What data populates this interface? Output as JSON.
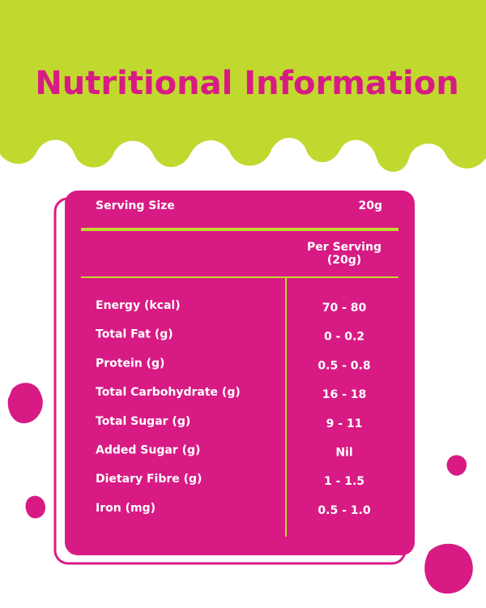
{
  "header": {
    "title": "Nutritional Information"
  },
  "table": {
    "serving_label": "Serving Size",
    "serving_value": "20g",
    "column_header": [
      "Per Serving",
      "(20g)"
    ],
    "rows": [
      [
        "Energy (kcal)",
        "70 - 80"
      ],
      [
        "Total Fat (g)",
        "0 - 0.2"
      ],
      [
        "Protein (g)",
        "0.5 - 0.8"
      ],
      [
        "Total Carbohydrate (g)",
        "16 - 18"
      ],
      [
        "Total Sugar (g)",
        "9 - 11"
      ],
      [
        "Added Sugar (g)",
        "Nil"
      ],
      [
        "Dietary Fibre (g)",
        "1 - 1.5"
      ],
      [
        "Iron (mg)",
        "0.5 - 1.0"
      ]
    ]
  }
}
